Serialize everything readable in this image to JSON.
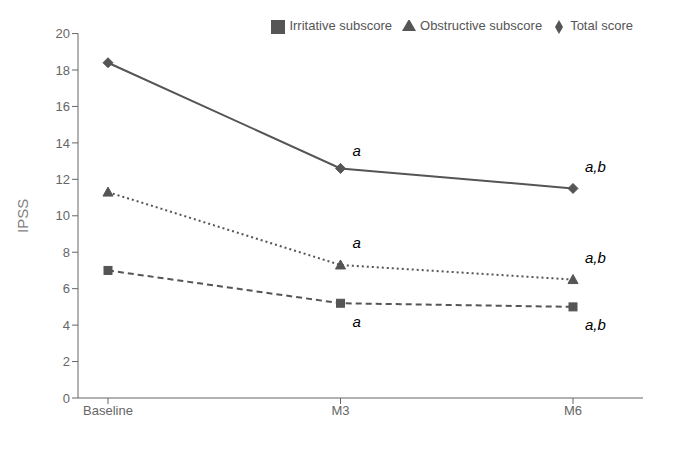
{
  "chart_data": {
    "type": "line",
    "categories": [
      "Baseline",
      "M3",
      "M6"
    ],
    "series": [
      {
        "name": "Total score",
        "color": "#555555",
        "values": [
          18.4,
          12.6,
          11.5
        ],
        "marker": "diamond",
        "line_style": "solid"
      },
      {
        "name": "Irritative subscore",
        "color": "#555555",
        "values": [
          7.0,
          5.2,
          5.0
        ],
        "marker": "square",
        "line_style": "dashed"
      },
      {
        "name": "Obstructive subscore",
        "color": "#555555",
        "values": [
          11.3,
          7.3,
          6.5
        ],
        "marker": "triangle",
        "line_style": "dotted"
      }
    ],
    "y_label": "IPSS",
    "ylim": [
      0,
      20
    ],
    "yticks": [
      0,
      2,
      4,
      6,
      8,
      10,
      12,
      14,
      16,
      18,
      20
    ],
    "annotations": [
      {
        "text": "a",
        "x": "M3",
        "y": 13.6
      },
      {
        "text": "a",
        "x": "M3",
        "y": 8.5
      },
      {
        "text": "a",
        "x": "M3",
        "y": 4.2
      },
      {
        "text": "a,b",
        "x": "M6",
        "y": 12.7
      },
      {
        "text": "a,b",
        "x": "M6",
        "y": 7.7
      },
      {
        "text": "a,b",
        "x": "M6",
        "y": 4.0
      }
    ],
    "legend": "upper right",
    "grid": false
  }
}
